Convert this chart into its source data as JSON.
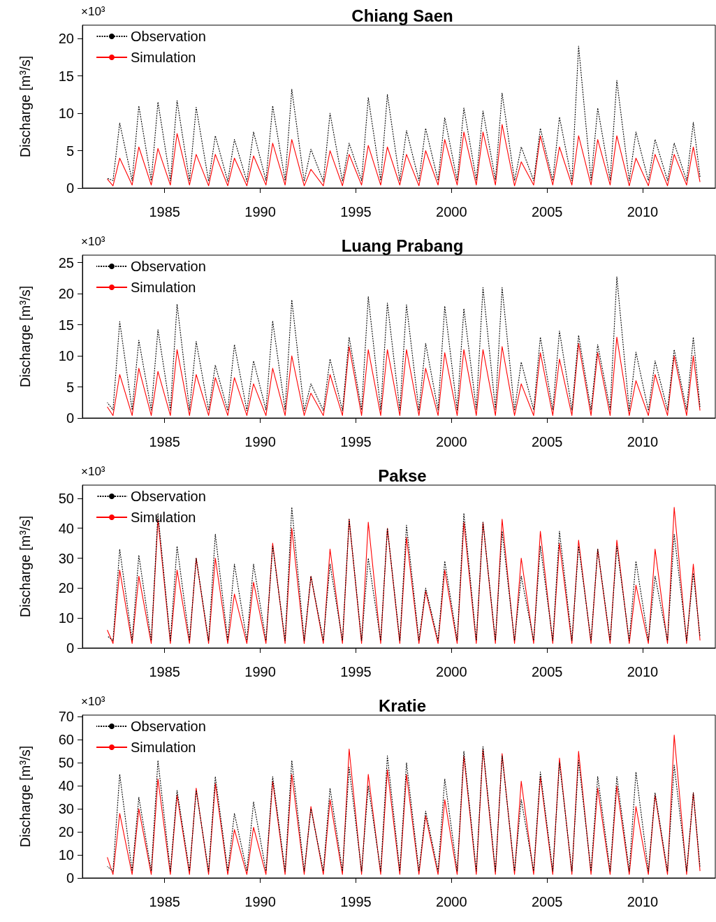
{
  "chart_data": [
    {
      "type": "line",
      "title": "Chiang Saen",
      "ylabel": "Discharge [m³/s]",
      "annotations": [
        "×10³"
      ],
      "legend": "top left",
      "grid": false,
      "marker": "none",
      "x": [
        1982,
        1982.3,
        1982.65,
        1983.3,
        1983.65,
        1984.3,
        1984.65,
        1985.3,
        1985.65,
        1986.3,
        1986.65,
        1987.3,
        1987.65,
        1988.3,
        1988.65,
        1989.3,
        1989.65,
        1990.3,
        1990.65,
        1991.3,
        1991.65,
        1992.3,
        1992.65,
        1993.3,
        1993.65,
        1994.3,
        1994.65,
        1995.3,
        1995.65,
        1996.3,
        1996.65,
        1997.3,
        1997.65,
        1998.3,
        1998.65,
        1999.3,
        1999.65,
        2000.3,
        2000.65,
        2001.3,
        2001.65,
        2002.3,
        2002.65,
        2003.3,
        2003.65,
        2004.3,
        2004.65,
        2005.3,
        2005.65,
        2006.3,
        2006.65,
        2007.3,
        2007.65,
        2008.3,
        2008.65,
        2009.3,
        2009.65,
        2010.3,
        2010.65,
        2011.3,
        2011.65,
        2012.3,
        2012.65,
        2013
      ],
      "xlim": [
        1980.7,
        2013.8
      ],
      "xticks": [
        1985,
        1990,
        1995,
        2000,
        2005,
        2010
      ],
      "ylim": [
        0,
        21.8
      ],
      "yticks": [
        0,
        5,
        10,
        15,
        20
      ],
      "series": [
        {
          "name": "Observation",
          "color": "#000000",
          "line_style": "dashed",
          "values": [
            1.3,
            1,
            8.7,
            1,
            11,
            1,
            11.5,
            1,
            11.7,
            1,
            10.8,
            0.9,
            7,
            0.9,
            6.5,
            0.9,
            7.5,
            1,
            11,
            1,
            13.2,
            0.9,
            5.2,
            0.9,
            10,
            0.9,
            6,
            1,
            12.1,
            1,
            12.5,
            1,
            7.7,
            1,
            8,
            1,
            9.4,
            1,
            10.7,
            1.1,
            10.3,
            1.1,
            12.7,
            1,
            5.5,
            1,
            8,
            1,
            9.5,
            1,
            19,
            1.1,
            10.7,
            1.1,
            14.4,
            1,
            7.5,
            1,
            6.5,
            1,
            6,
            1,
            8.8,
            1.5
          ]
        },
        {
          "name": "Simulation",
          "color": "#ff0000",
          "line_style": "solid",
          "values": [
            1.2,
            0.3,
            4,
            0.4,
            5.5,
            0.4,
            5.3,
            0.4,
            7.3,
            0.4,
            4.5,
            0.3,
            4.5,
            0.3,
            4,
            0.3,
            4.3,
            0.4,
            6,
            0.4,
            6.5,
            0.3,
            2.5,
            0.3,
            5,
            0.3,
            4.5,
            0.4,
            5.7,
            0.4,
            5.5,
            0.4,
            4.5,
            0.3,
            5,
            0.4,
            6.5,
            0.4,
            7.5,
            0.4,
            7.5,
            0.4,
            8.5,
            0.3,
            3.5,
            0.4,
            7,
            0.4,
            5.5,
            0.4,
            7,
            0.4,
            6.5,
            0.4,
            7,
            0.3,
            4,
            0.3,
            4.5,
            0.3,
            4.5,
            0.4,
            5.5,
            0.8
          ]
        }
      ]
    },
    {
      "type": "line",
      "title": "Luang Prabang",
      "ylabel": "Discharge [m³/s]",
      "annotations": [
        "×10³"
      ],
      "legend": "top left",
      "grid": false,
      "marker": "none",
      "x": [
        1982,
        1982.3,
        1982.65,
        1983.3,
        1983.65,
        1984.3,
        1984.65,
        1985.3,
        1985.65,
        1986.3,
        1986.65,
        1987.3,
        1987.65,
        1988.3,
        1988.65,
        1989.3,
        1989.65,
        1990.3,
        1990.65,
        1991.3,
        1991.65,
        1992.3,
        1992.65,
        1993.3,
        1993.65,
        1994.3,
        1994.65,
        1995.3,
        1995.65,
        1996.3,
        1996.65,
        1997.3,
        1997.65,
        1998.3,
        1998.65,
        1999.3,
        1999.65,
        2000.3,
        2000.65,
        2001.3,
        2001.65,
        2002.3,
        2002.65,
        2003.3,
        2003.65,
        2004.3,
        2004.65,
        2005.3,
        2005.65,
        2006.3,
        2006.65,
        2007.3,
        2007.65,
        2008.3,
        2008.65,
        2009.3,
        2009.65,
        2010.3,
        2010.65,
        2011.3,
        2011.65,
        2012.3,
        2012.65,
        2013
      ],
      "xlim": [
        1980.7,
        2013.8
      ],
      "xticks": [
        1985,
        1990,
        1995,
        2000,
        2005,
        2010
      ],
      "ylim": [
        0,
        26.2
      ],
      "yticks": [
        0,
        5,
        10,
        15,
        20,
        25
      ],
      "series": [
        {
          "name": "Observation",
          "color": "#000000",
          "line_style": "dashed",
          "values": [
            2.5,
            1.3,
            15.5,
            1.3,
            12.5,
            1.3,
            14.2,
            1.3,
            18.3,
            1.3,
            12.3,
            1.2,
            8.5,
            1.2,
            11.8,
            1.2,
            9.2,
            1.3,
            15.6,
            1.3,
            19,
            1.2,
            5.5,
            1.2,
            9.5,
            1.2,
            13,
            1.3,
            19.5,
            1.3,
            18.5,
            1.3,
            18.2,
            1.2,
            12,
            1.3,
            18,
            1.3,
            17.6,
            1.4,
            21,
            1.4,
            21,
            1.2,
            9,
            1.3,
            13,
            1.3,
            14,
            1.3,
            13.3,
            1.3,
            11.8,
            1.4,
            22.7,
            1.2,
            10.6,
            1.2,
            9.2,
            1.3,
            11,
            1.3,
            13,
            1.8
          ]
        },
        {
          "name": "Simulation",
          "color": "#ff0000",
          "line_style": "solid",
          "values": [
            1.8,
            0.4,
            7,
            0.4,
            8,
            0.4,
            7.5,
            0.4,
            11,
            0.4,
            7,
            0.4,
            6.5,
            0.4,
            6.5,
            0.4,
            5.5,
            0.4,
            8,
            0.4,
            10,
            0.4,
            4,
            0.4,
            7,
            0.4,
            11.5,
            0.4,
            11,
            0.4,
            11,
            0.4,
            11,
            0.4,
            8,
            0.4,
            10.5,
            0.4,
            11,
            0.4,
            11,
            0.4,
            11.5,
            0.4,
            5.5,
            0.4,
            10.5,
            0.4,
            9.5,
            0.4,
            12,
            0.4,
            10.5,
            0.4,
            13,
            0.4,
            6,
            0.4,
            7,
            0.4,
            10,
            0.4,
            10,
            1.2
          ]
        }
      ]
    },
    {
      "type": "line",
      "title": "Pakse",
      "ylabel": "Discharge [m³/s]",
      "annotations": [
        "×10³"
      ],
      "legend": "top left",
      "grid": false,
      "marker": "none",
      "x": [
        1982,
        1982.3,
        1982.65,
        1983.3,
        1983.65,
        1984.3,
        1984.65,
        1985.3,
        1985.65,
        1986.3,
        1986.65,
        1987.3,
        1987.65,
        1988.3,
        1988.65,
        1989.3,
        1989.65,
        1990.3,
        1990.65,
        1991.3,
        1991.65,
        1992.3,
        1992.65,
        1993.3,
        1993.65,
        1994.3,
        1994.65,
        1995.3,
        1995.65,
        1996.3,
        1996.65,
        1997.3,
        1997.65,
        1998.3,
        1998.65,
        1999.3,
        1999.65,
        2000.3,
        2000.65,
        2001.3,
        2001.65,
        2002.3,
        2002.65,
        2003.3,
        2003.65,
        2004.3,
        2004.65,
        2005.3,
        2005.65,
        2006.3,
        2006.65,
        2007.3,
        2007.65,
        2008.3,
        2008.65,
        2009.3,
        2009.65,
        2010.3,
        2010.65,
        2011.3,
        2011.65,
        2012.3,
        2012.65,
        2013
      ],
      "xlim": [
        1980.7,
        2013.8
      ],
      "xticks": [
        1985,
        1990,
        1995,
        2000,
        2005,
        2010
      ],
      "ylim": [
        0,
        54.4
      ],
      "yticks": [
        0,
        10,
        20,
        30,
        40,
        50
      ],
      "series": [
        {
          "name": "Observation",
          "color": "#000000",
          "line_style": "dashed",
          "values": [
            4,
            2.5,
            33,
            2.5,
            31,
            2.5,
            45,
            2.5,
            34,
            2.5,
            30,
            2.5,
            38,
            2.5,
            28,
            2.5,
            28,
            2.5,
            34,
            2.5,
            47,
            2.5,
            24,
            2.5,
            28,
            2.5,
            43,
            2.5,
            30,
            2.5,
            40,
            2.5,
            41,
            2.5,
            20,
            2.5,
            29,
            2.5,
            45,
            2.5,
            42,
            2.5,
            39,
            2.5,
            24,
            2.5,
            34,
            2.5,
            39,
            2.5,
            34,
            2.5,
            33,
            2.5,
            34,
            2.5,
            29,
            2.5,
            24,
            2.5,
            38,
            2.5,
            25,
            4
          ]
        },
        {
          "name": "Simulation",
          "color": "#ff0000",
          "line_style": "solid",
          "values": [
            6,
            1.5,
            26,
            1.5,
            24,
            1.5,
            43,
            1.5,
            26,
            1.5,
            30,
            1.5,
            30,
            1.5,
            18,
            1.5,
            22,
            1.5,
            35,
            1.5,
            40,
            1.5,
            24,
            1.5,
            33,
            1.5,
            43,
            1.5,
            42,
            1.5,
            40,
            1.5,
            37,
            1.5,
            19,
            1.5,
            26,
            1.5,
            42,
            1.5,
            42,
            1.5,
            43,
            1.5,
            30,
            1.5,
            39,
            1.5,
            35,
            1.5,
            36,
            1.5,
            33,
            1.5,
            36,
            1.5,
            21,
            1.5,
            33,
            1.5,
            47,
            1.5,
            28,
            2.5
          ]
        }
      ]
    },
    {
      "type": "line",
      "title": "Kratie",
      "ylabel": "Discharge [m³/s]",
      "annotations": [
        "×10³"
      ],
      "legend": "top left",
      "grid": false,
      "marker": "none",
      "x": [
        1982,
        1982.3,
        1982.65,
        1983.3,
        1983.65,
        1984.3,
        1984.65,
        1985.3,
        1985.65,
        1986.3,
        1986.65,
        1987.3,
        1987.65,
        1988.3,
        1988.65,
        1989.3,
        1989.65,
        1990.3,
        1990.65,
        1991.3,
        1991.65,
        1992.3,
        1992.65,
        1993.3,
        1993.65,
        1994.3,
        1994.65,
        1995.3,
        1995.65,
        1996.3,
        1996.65,
        1997.3,
        1997.65,
        1998.3,
        1998.65,
        1999.3,
        1999.65,
        2000.3,
        2000.65,
        2001.3,
        2001.65,
        2002.3,
        2002.65,
        2003.3,
        2003.65,
        2004.3,
        2004.65,
        2005.3,
        2005.65,
        2006.3,
        2006.65,
        2007.3,
        2007.65,
        2008.3,
        2008.65,
        2009.3,
        2009.65,
        2010.3,
        2010.65,
        2011.3,
        2011.65,
        2012.3,
        2012.65,
        2013
      ],
      "xlim": [
        1980.7,
        2013.8
      ],
      "xticks": [
        1985,
        1990,
        1995,
        2000,
        2005,
        2010
      ],
      "ylim": [
        0,
        70.7
      ],
      "yticks": [
        0,
        10,
        20,
        30,
        40,
        50,
        60,
        70
      ],
      "series": [
        {
          "name": "Observation",
          "color": "#000000",
          "line_style": "dashed",
          "values": [
            5,
            3,
            45,
            3,
            35,
            3,
            51,
            3,
            38,
            3,
            38,
            3,
            44,
            3,
            28,
            3,
            33,
            3,
            44,
            3,
            51,
            3,
            30,
            3,
            39,
            3,
            48,
            3,
            40,
            3,
            53,
            3,
            50,
            3,
            29,
            3,
            43,
            3,
            55,
            3,
            57,
            3,
            53,
            3,
            34,
            3,
            46,
            3,
            50,
            3,
            51,
            3,
            44,
            3,
            44,
            3,
            46,
            3,
            37,
            3,
            49,
            3,
            37,
            5
          ]
        },
        {
          "name": "Simulation",
          "color": "#ff0000",
          "line_style": "solid",
          "values": [
            9,
            1.5,
            28,
            1.5,
            30,
            1.5,
            43,
            1.5,
            36,
            1.5,
            39,
            1.5,
            41,
            1.5,
            21,
            1.5,
            22,
            1.5,
            42,
            1.5,
            45,
            1.5,
            31,
            1.5,
            34,
            1.5,
            56,
            1.5,
            45,
            1.5,
            47,
            1.5,
            45,
            1.5,
            27,
            1.5,
            34,
            1.5,
            53,
            1.5,
            56,
            1.5,
            54,
            1.5,
            42,
            1.5,
            44,
            1.5,
            52,
            1.5,
            55,
            1.5,
            39,
            1.5,
            40,
            1.5,
            31,
            1.5,
            36,
            1.5,
            62,
            1.5,
            37,
            3
          ]
        }
      ]
    }
  ]
}
